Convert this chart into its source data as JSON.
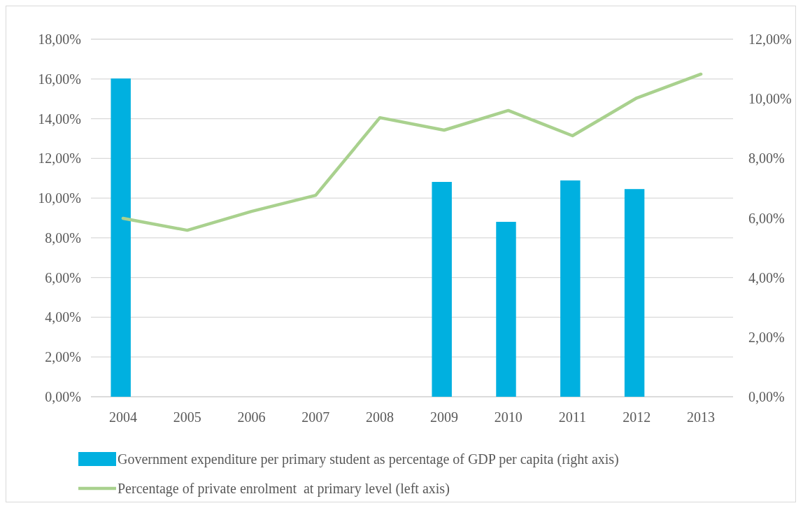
{
  "chart_data": {
    "type": "bar",
    "categories": [
      "2004",
      "2005",
      "2006",
      "2007",
      "2008",
      "2009",
      "2010",
      "2011",
      "2012",
      "2013"
    ],
    "series": [
      {
        "name": "Government expenditure per primary student as percentage of GDP per capita (right axis)",
        "axis": "y2",
        "color": "#00b0e0",
        "values": [
          10.68,
          null,
          null,
          null,
          null,
          7.21,
          5.87,
          7.26,
          6.97,
          null
        ]
      },
      {
        "name": "Percentage of private enrolment  at primary level (left axis)",
        "type": "line",
        "color": "#a9d18e",
        "values": [
          8.98,
          8.38,
          9.33,
          10.14,
          14.05,
          13.42,
          14.41,
          13.14,
          15.04,
          16.24
        ]
      }
    ],
    "ylim": [
      0,
      18
    ],
    "yticks": [
      {
        "value": 0,
        "label": "0,00%"
      },
      {
        "value": 2,
        "label": "2,00%"
      },
      {
        "value": 4,
        "label": "4,00%"
      },
      {
        "value": 6,
        "label": "6,00%"
      },
      {
        "value": 8,
        "label": "8,00%"
      },
      {
        "value": 10,
        "label": "10,00%"
      },
      {
        "value": 12,
        "label": "12,00%"
      },
      {
        "value": 14,
        "label": "14,00%"
      },
      {
        "value": 16,
        "label": "16,00%"
      },
      {
        "value": 18,
        "label": "18,00%"
      }
    ],
    "y2lim": [
      0,
      12
    ],
    "y2ticks": [
      {
        "value": 0,
        "label": "0,00%"
      },
      {
        "value": 2,
        "label": "2,00%"
      },
      {
        "value": 4,
        "label": "4,00%"
      },
      {
        "value": 6,
        "label": "6,00%"
      },
      {
        "value": 8,
        "label": "8,00%"
      },
      {
        "value": 10,
        "label": "10,00%"
      },
      {
        "value": 12,
        "label": "12,00%"
      }
    ],
    "grid": "y",
    "legend": "bottom",
    "marker": "none",
    "line_style": "solid"
  }
}
